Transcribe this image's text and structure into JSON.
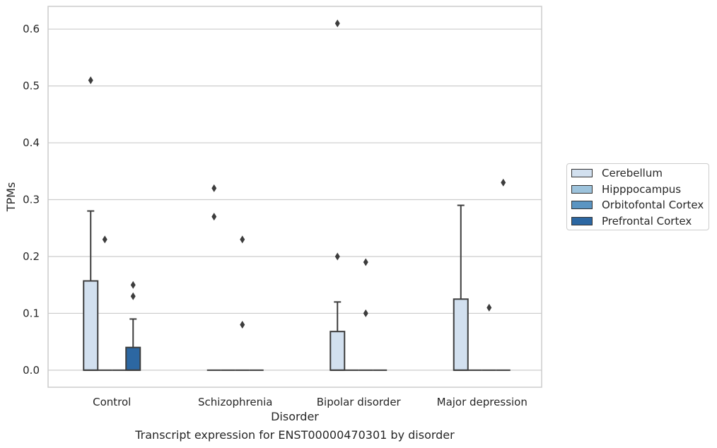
{
  "chart_data": {
    "type": "box",
    "title": "",
    "xlabel": "Disorder",
    "ylabel": "TPMs",
    "caption": "Transcript expression for ENST00000470301 by disorder",
    "ylim": [
      -0.03,
      0.64
    ],
    "yticks": [
      "0.0",
      "0.1",
      "0.2",
      "0.3",
      "0.4",
      "0.5",
      "0.6"
    ],
    "grid": true,
    "legend_position": "right",
    "categories": [
      "Control",
      "Schizophrenia",
      "Bipolar disorder",
      "Major depression"
    ],
    "series": [
      {
        "name": "Cerebellum",
        "color": "#d2e0ef",
        "boxes": [
          {
            "q1": 0,
            "median": 0,
            "q3": 0.157,
            "whisker_low": 0,
            "whisker_high": 0.28,
            "outliers": [
              0.51
            ]
          },
          {
            "q1": 0,
            "median": 0,
            "q3": 0,
            "whisker_low": 0,
            "whisker_high": 0,
            "outliers": [
              0.32,
              0.27
            ]
          },
          {
            "q1": 0,
            "median": 0,
            "q3": 0.068,
            "whisker_low": 0,
            "whisker_high": 0.12,
            "outliers": [
              0.61,
              0.2
            ]
          },
          {
            "q1": 0,
            "median": 0,
            "q3": 0.125,
            "whisker_low": 0,
            "whisker_high": 0.29,
            "outliers": []
          }
        ]
      },
      {
        "name": "Hipppocampus",
        "color": "#9dc3dc",
        "boxes": [
          {
            "q1": 0,
            "median": 0,
            "q3": 0,
            "whisker_low": 0,
            "whisker_high": 0,
            "outliers": [
              0.23
            ]
          },
          {
            "q1": 0,
            "median": 0,
            "q3": 0,
            "whisker_low": 0,
            "whisker_high": 0,
            "outliers": []
          },
          {
            "q1": 0,
            "median": 0,
            "q3": 0,
            "whisker_low": 0,
            "whisker_high": 0,
            "outliers": []
          },
          {
            "q1": 0,
            "median": 0,
            "q3": 0,
            "whisker_low": 0,
            "whisker_high": 0,
            "outliers": []
          }
        ]
      },
      {
        "name": "Orbitofontal Cortex",
        "color": "#5b95c2",
        "boxes": [
          {
            "q1": 0,
            "median": 0,
            "q3": 0,
            "whisker_low": 0,
            "whisker_high": 0,
            "outliers": []
          },
          {
            "q1": 0,
            "median": 0,
            "q3": 0,
            "whisker_low": 0,
            "whisker_high": 0,
            "outliers": [
              0.23,
              0.08
            ]
          },
          {
            "q1": 0,
            "median": 0,
            "q3": 0,
            "whisker_low": 0,
            "whisker_high": 0,
            "outliers": [
              0.19,
              0.1
            ]
          },
          {
            "q1": 0,
            "median": 0,
            "q3": 0,
            "whisker_low": 0,
            "whisker_high": 0,
            "outliers": [
              0.11
            ]
          }
        ]
      },
      {
        "name": "Prefrontal Cortex",
        "color": "#2c67a2",
        "boxes": [
          {
            "q1": 0,
            "median": 0,
            "q3": 0.04,
            "whisker_low": 0,
            "whisker_high": 0.09,
            "outliers": [
              0.15,
              0.13
            ]
          },
          {
            "q1": 0,
            "median": 0,
            "q3": 0,
            "whisker_low": 0,
            "whisker_high": 0,
            "outliers": []
          },
          {
            "q1": 0,
            "median": 0,
            "q3": 0,
            "whisker_low": 0,
            "whisker_high": 0,
            "outliers": []
          },
          {
            "q1": 0,
            "median": 0,
            "q3": 0,
            "whisker_low": 0,
            "whisker_high": 0,
            "outliers": [
              0.33
            ]
          }
        ]
      }
    ]
  }
}
